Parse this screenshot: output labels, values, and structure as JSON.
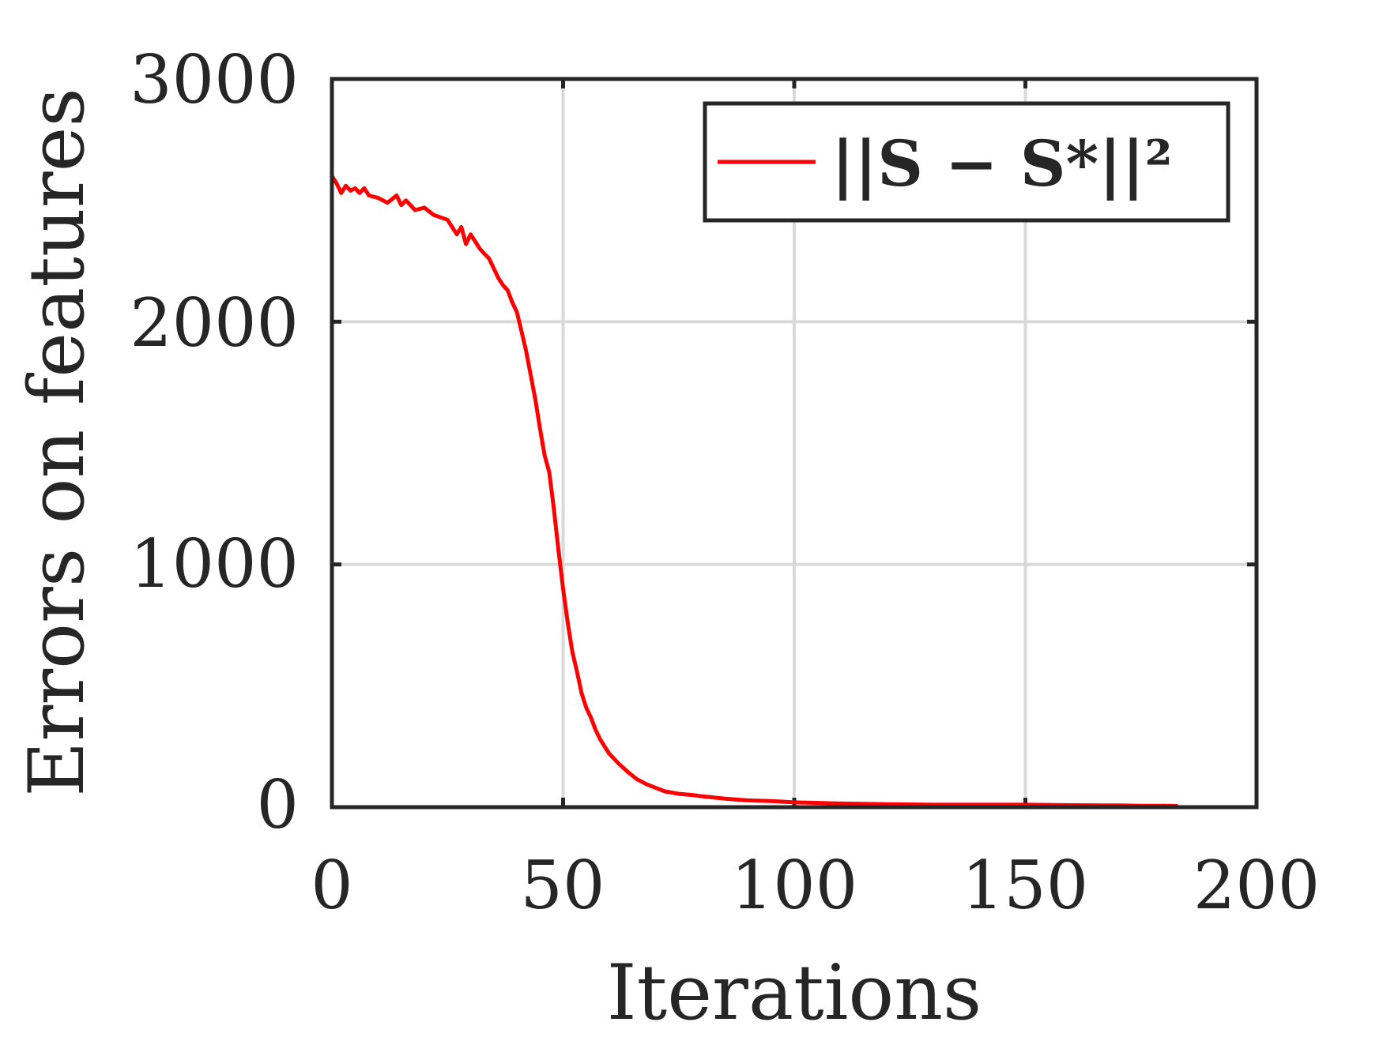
{
  "chart_data": {
    "type": "line",
    "xlabel": "Iterations",
    "ylabel": "Errors on features",
    "xlim": [
      0,
      200
    ],
    "ylim": [
      0,
      3000
    ],
    "xticks": [
      "0",
      "50",
      "100",
      "150",
      "200"
    ],
    "yticks": [
      "0",
      "1000",
      "2000",
      "3000"
    ],
    "grid": true,
    "legend_position": "top-right",
    "series": [
      {
        "name": "||S − S*||²",
        "color": "#ff0000",
        "x": [
          0,
          1,
          2,
          3,
          4,
          5,
          6,
          7,
          8,
          10,
          12,
          14,
          15,
          16,
          18,
          20,
          22,
          25,
          27,
          28,
          29,
          30,
          31,
          32,
          33,
          34,
          36,
          37,
          38,
          39,
          40,
          41,
          42,
          43,
          44,
          45,
          46,
          47,
          48,
          49,
          50,
          51,
          52,
          53,
          54,
          55,
          56,
          57,
          58,
          59,
          60,
          62,
          64,
          66,
          68,
          70,
          72,
          75,
          78,
          80,
          85,
          90,
          95,
          100,
          110,
          120,
          130,
          140,
          150,
          160,
          170,
          175,
          180,
          183
        ],
        "y": [
          2600,
          2570,
          2530,
          2560,
          2540,
          2550,
          2530,
          2550,
          2520,
          2510,
          2490,
          2520,
          2480,
          2500,
          2460,
          2470,
          2440,
          2420,
          2360,
          2390,
          2320,
          2360,
          2330,
          2300,
          2280,
          2260,
          2180,
          2150,
          2130,
          2080,
          2040,
          1960,
          1880,
          1780,
          1680,
          1560,
          1450,
          1380,
          1230,
          1060,
          900,
          760,
          640,
          560,
          470,
          410,
          370,
          320,
          280,
          250,
          220,
          180,
          145,
          115,
          95,
          80,
          65,
          55,
          50,
          45,
          35,
          28,
          25,
          20,
          15,
          12,
          10,
          10,
          10,
          8,
          7,
          6,
          6,
          5
        ]
      }
    ]
  }
}
